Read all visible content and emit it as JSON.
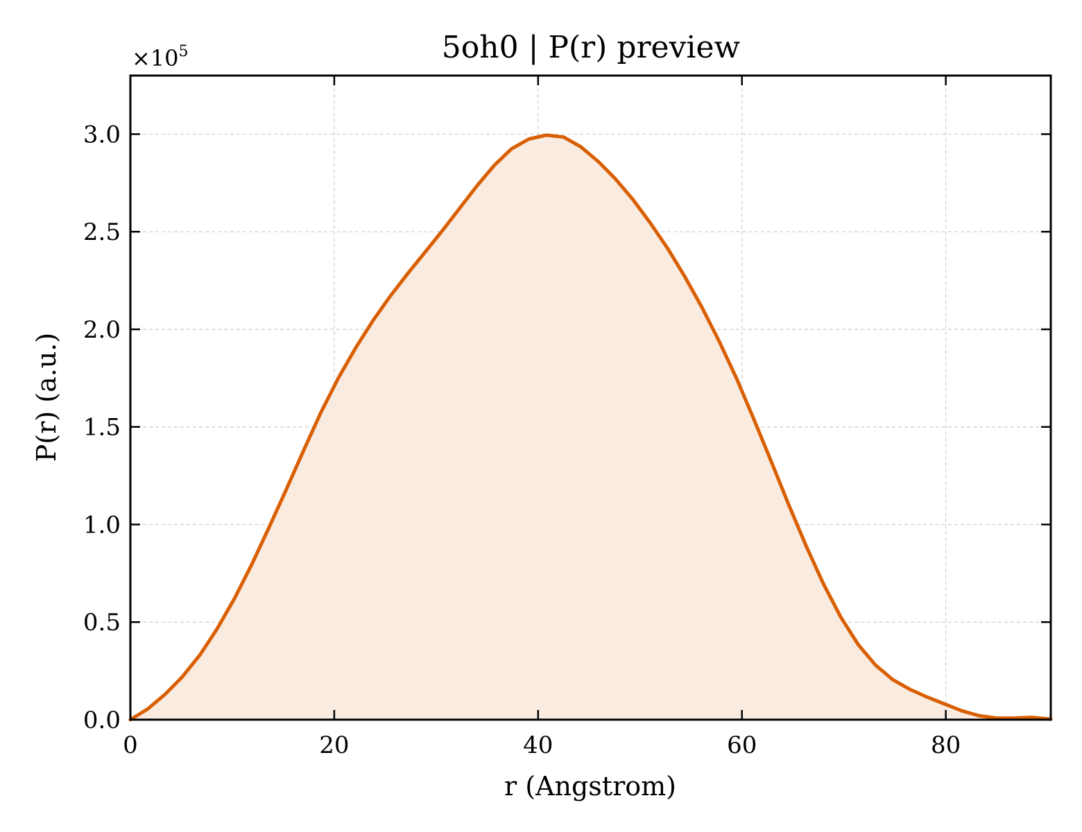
{
  "chart_data": {
    "type": "area",
    "title": "5oh0 | P(r) preview",
    "xlabel": "r (Angstrom)",
    "ylabel": "P(r) (a.u.)",
    "y_multiplier_label": "×10",
    "y_multiplier_exponent": "5",
    "xlim": [
      0,
      90.3
    ],
    "ylim": [
      0,
      3.3
    ],
    "x_ticks": [
      0,
      20,
      40,
      60,
      80
    ],
    "x_tick_labels": [
      "0",
      "20",
      "40",
      "60",
      "80"
    ],
    "y_ticks": [
      0,
      0.5,
      1.0,
      1.5,
      2.0,
      2.5,
      3.0
    ],
    "y_tick_labels": [
      "0.0",
      "0.5",
      "1.0",
      "1.5",
      "2.0",
      "2.5",
      "3.0"
    ],
    "grid": true,
    "line_color": "#d95f02",
    "fill_color": "#f9ebe0",
    "series": [
      {
        "x": [
          0,
          1.7,
          3.4,
          5.1,
          6.8,
          8.5,
          10.2,
          11.9,
          13.6,
          15.3,
          17.0,
          18.7,
          20.4,
          22.1,
          23.8,
          25.5,
          27.2,
          28.9,
          30.6,
          32.3,
          34.0,
          35.7,
          37.4,
          39.1,
          40.8,
          42.5,
          44.2,
          45.9,
          47.6,
          49.3,
          51.0,
          52.7,
          54.4,
          56.1,
          57.8,
          59.5,
          61.2,
          62.9,
          64.6,
          66.3,
          68.0,
          69.7,
          71.4,
          73.1,
          74.8,
          76.5,
          78.2,
          79.9,
          81.6,
          83.3,
          85.0,
          86.7,
          88.4,
          90.3
        ],
        "values": [
          0,
          0.055,
          0.13,
          0.22,
          0.33,
          0.465,
          0.62,
          0.795,
          0.985,
          1.18,
          1.38,
          1.575,
          1.75,
          1.905,
          2.045,
          2.17,
          2.285,
          2.395,
          2.505,
          2.62,
          2.735,
          2.84,
          2.925,
          2.975,
          2.995,
          2.985,
          2.935,
          2.86,
          2.77,
          2.665,
          2.545,
          2.415,
          2.27,
          2.11,
          1.935,
          1.745,
          1.535,
          1.32,
          1.1,
          0.89,
          0.695,
          0.525,
          0.385,
          0.28,
          0.205,
          0.155,
          0.115,
          0.08,
          0.045,
          0.02,
          0.008,
          0.008,
          0.012,
          0.003
        ]
      }
    ]
  }
}
